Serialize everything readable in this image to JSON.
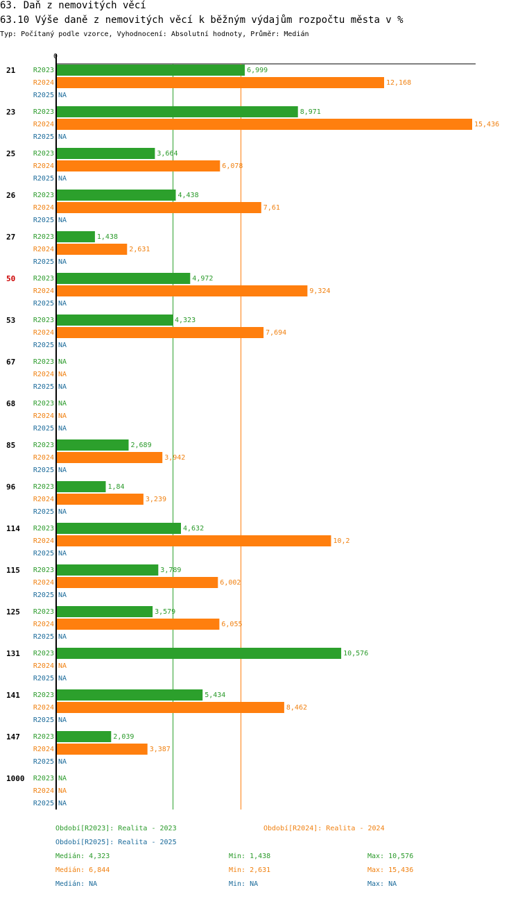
{
  "header": {
    "title": "63. Daň z nemovitých věcí",
    "subtitle": "63.10 Výše daně z nemovitých věcí k běžným výdajům rozpočtu města v %",
    "type_line": "Typ: Počítaný podle vzorce, Vyhodnocení: Absolutní hodnoty, Průměr: Medián"
  },
  "colors": {
    "r2023": "#2ca02c",
    "r2024": "#ff7f0e",
    "r2025": "#1f77b4",
    "highlight": "#cc0000"
  },
  "chart_data": {
    "type": "bar",
    "orientation": "horizontal",
    "axis_zero_label": "0",
    "xlim": [
      0,
      15.436
    ],
    "reference_lines": [
      {
        "name": "Medián R2023",
        "value": 4.323
      },
      {
        "name": "Medián R2024",
        "value": 6.844
      }
    ],
    "series_names": [
      "R2023",
      "R2024",
      "R2025"
    ],
    "categories": [
      {
        "label": "21",
        "highlight": false,
        "values": [
          6.999,
          12.168,
          null
        ],
        "labels": [
          "6,999",
          "12,168",
          "NA"
        ]
      },
      {
        "label": "23",
        "highlight": false,
        "values": [
          8.971,
          15.436,
          null
        ],
        "labels": [
          "8,971",
          "15,436",
          "NA"
        ]
      },
      {
        "label": "25",
        "highlight": false,
        "values": [
          3.664,
          6.078,
          null
        ],
        "labels": [
          "3,664",
          "6,078",
          "NA"
        ]
      },
      {
        "label": "26",
        "highlight": false,
        "values": [
          4.438,
          7.61,
          null
        ],
        "labels": [
          "4,438",
          "7,61",
          "NA"
        ]
      },
      {
        "label": "27",
        "highlight": false,
        "values": [
          1.438,
          2.631,
          null
        ],
        "labels": [
          "1,438",
          "2,631",
          "NA"
        ]
      },
      {
        "label": "50",
        "highlight": true,
        "values": [
          4.972,
          9.324,
          null
        ],
        "labels": [
          "4,972",
          "9,324",
          "NA"
        ]
      },
      {
        "label": "53",
        "highlight": false,
        "values": [
          4.323,
          7.694,
          null
        ],
        "labels": [
          "4,323",
          "7,694",
          "NA"
        ]
      },
      {
        "label": "67",
        "highlight": false,
        "values": [
          null,
          null,
          null
        ],
        "labels": [
          "NA",
          "NA",
          "NA"
        ]
      },
      {
        "label": "68",
        "highlight": false,
        "values": [
          null,
          null,
          null
        ],
        "labels": [
          "NA",
          "NA",
          "NA"
        ]
      },
      {
        "label": "85",
        "highlight": false,
        "values": [
          2.689,
          3.942,
          null
        ],
        "labels": [
          "2,689",
          "3,942",
          "NA"
        ]
      },
      {
        "label": "96",
        "highlight": false,
        "values": [
          1.84,
          3.239,
          null
        ],
        "labels": [
          "1,84",
          "3,239",
          "NA"
        ]
      },
      {
        "label": "114",
        "highlight": false,
        "values": [
          4.632,
          10.2,
          null
        ],
        "labels": [
          "4,632",
          "10,2",
          "NA"
        ]
      },
      {
        "label": "115",
        "highlight": false,
        "values": [
          3.789,
          6.002,
          null
        ],
        "labels": [
          "3,789",
          "6,002",
          "NA"
        ]
      },
      {
        "label": "125",
        "highlight": false,
        "values": [
          3.579,
          6.055,
          null
        ],
        "labels": [
          "3,579",
          "6,055",
          "NA"
        ]
      },
      {
        "label": "131",
        "highlight": false,
        "values": [
          10.576,
          null,
          null
        ],
        "labels": [
          "10,576",
          "NA",
          "NA"
        ]
      },
      {
        "label": "141",
        "highlight": false,
        "values": [
          5.434,
          8.462,
          null
        ],
        "labels": [
          "5,434",
          "8,462",
          "NA"
        ]
      },
      {
        "label": "147",
        "highlight": false,
        "values": [
          2.039,
          3.387,
          null
        ],
        "labels": [
          "2,039",
          "3,387",
          "NA"
        ]
      },
      {
        "label": "1000",
        "highlight": false,
        "values": [
          null,
          null,
          null
        ],
        "labels": [
          "NA",
          "NA",
          "NA"
        ]
      }
    ]
  },
  "legend": {
    "r2023": "Období[R2023]: Realita - 2023",
    "r2024": "Období[R2024]: Realita - 2024",
    "r2025": "Období[R2025]: Realita - 2025",
    "stats": {
      "r2023": {
        "median": "Medián: 4,323",
        "min": "Min: 1,438",
        "max": "Max: 10,576"
      },
      "r2024": {
        "median": "Medián: 6,844",
        "min": "Min: 2,631",
        "max": "Max: 15,436"
      },
      "r2025": {
        "median": "Medián: NA",
        "min": "Min: NA",
        "max": "Max: NA"
      }
    }
  }
}
